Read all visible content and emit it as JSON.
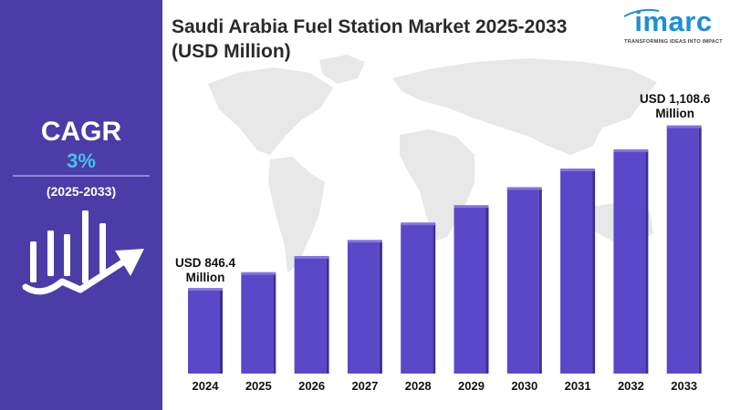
{
  "title": "Saudi Arabia Fuel Station Market 2025-2033 (USD Million)",
  "brand": {
    "name": "imarc",
    "tagline": "TRANSFORMING IDEAS INTO IMPACT",
    "color": "#1d8fd4"
  },
  "cagr": {
    "label": "CAGR",
    "value": "3%",
    "period": "(2025-2033)"
  },
  "colors": {
    "sidebar": "#4a3da8",
    "bar": "#5a48c8",
    "cagr_value": "#45c1f0"
  },
  "annotations": {
    "first": {
      "line1": "USD 846.4",
      "line2": "Million"
    },
    "last": {
      "line1": "USD 1,108.6",
      "line2": "Million"
    }
  },
  "chart_data": {
    "type": "bar",
    "title": "Saudi Arabia Fuel Station Market 2025-2033 (USD Million)",
    "categories": [
      "2024",
      "2025",
      "2026",
      "2027",
      "2028",
      "2029",
      "2030",
      "2031",
      "2032",
      "2033"
    ],
    "values": [
      846.4,
      872,
      898,
      924,
      952,
      980,
      1009,
      1039,
      1070,
      1108.6
    ],
    "ylim": [
      710,
      1130
    ],
    "xlabel": "",
    "ylabel": "",
    "grid": false,
    "legend": "none"
  }
}
